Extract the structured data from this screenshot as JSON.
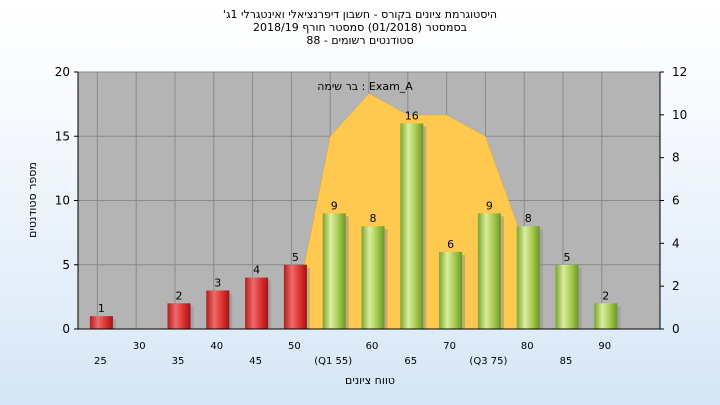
{
  "header": {
    "line1": "'היסטוגרמת ציונים בקורס - חשבון דיפרנציאלי ואינטגרלי 1ג",
    "line2": "בסמסטר  (01/2018)  סמסטר חורף 2018/19",
    "line3": "סטודנטים רשומים - 88"
  },
  "chart_data": {
    "type": "bar",
    "title": "'היסטוגרמת ציונים בקורס - חשבון דיפרנציאלי ואינטגרלי 1ג",
    "xlabel": "טווח ציונים",
    "ylabel": "מספר סטודנטים",
    "ylim": [
      0,
      20
    ],
    "y2lim": [
      0,
      12
    ],
    "yticks": [
      0,
      5,
      10,
      15,
      20
    ],
    "y2ticks": [
      0,
      2,
      4,
      6,
      8,
      10,
      12
    ],
    "grid": true,
    "bins": [
      25,
      30,
      35,
      40,
      45,
      50,
      55,
      60,
      65,
      70,
      75,
      80,
      85,
      90
    ],
    "x_tick_labels": [
      "25",
      "30",
      "35",
      "40",
      "45",
      "50",
      "(Q1 55)",
      "60",
      "65",
      "70",
      "(Q3 75)",
      "80",
      "85",
      "90"
    ],
    "values": [
      1,
      0,
      2,
      3,
      4,
      5,
      9,
      8,
      16,
      6,
      9,
      8,
      5,
      2
    ],
    "data_labels": [
      "1",
      "",
      "2",
      "3",
      "4",
      "5",
      "9",
      "8",
      "16",
      "6",
      "9",
      "8",
      "5",
      "2"
    ],
    "colors": [
      "red",
      "red",
      "red",
      "red",
      "red",
      "red",
      "green",
      "green",
      "green",
      "green",
      "green",
      "green",
      "green",
      "green"
    ],
    "legend": "בר שימה : Exam_A",
    "legend_position": "top-center",
    "area_series": {
      "axis": "right",
      "x": [
        50,
        55,
        60,
        65,
        70,
        75,
        80
      ],
      "values": [
        0,
        9,
        11,
        10,
        10,
        9,
        4
      ]
    }
  },
  "palette": {
    "red_top": "#f27d7d",
    "red_mid": "#e23131",
    "red_dark": "#a81a1a",
    "green_top": "#e2f0a3",
    "green_mid": "#a6cc48",
    "green_dark": "#6f9a2a",
    "area_fill": "#ffc94f",
    "plot_bg": "#b4b4b4",
    "grid": "#8a8a8a",
    "shadow": "#8f8f8f"
  }
}
